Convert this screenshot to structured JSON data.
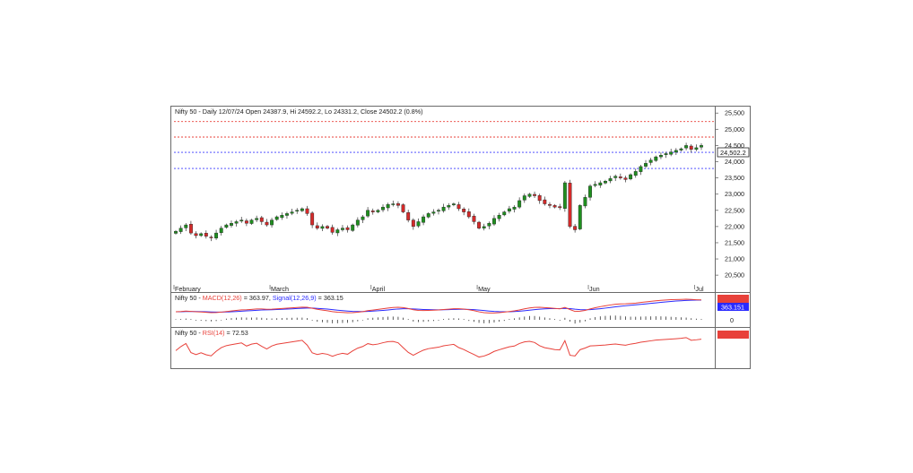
{
  "chart_data": [
    {
      "type": "candlestick",
      "header": "Nifty 50 - Daily 12/07/24 Open 24387.9, Hi 24592.2, Lo 24331.2, Close 24502.2 (0.8%)",
      "y_ticks": [
        "25,500",
        "25,000",
        "24,500",
        "24,000",
        "23,500",
        "23,000",
        "22,500",
        "22,000",
        "21,500",
        "21,000",
        "20,500"
      ],
      "ylim": [
        20200,
        25700
      ],
      "price_label": "24,502.2",
      "last_close": 24502.2,
      "month_labels": [
        {
          "label": "February",
          "index": 0
        },
        {
          "label": "March",
          "index": 19
        },
        {
          "label": "April",
          "index": 39
        },
        {
          "label": "May",
          "index": 60
        },
        {
          "label": "Jun",
          "index": 82
        },
        {
          "label": "Jul",
          "index": 103
        }
      ],
      "horizontal_levels": [
        {
          "value": 25240,
          "color": "#e8413a"
        },
        {
          "value": 24760,
          "color": "#e8413a"
        },
        {
          "value": 24290,
          "color": "#3a3aff"
        },
        {
          "value": 23790,
          "color": "#3a3aff"
        }
      ],
      "closes": [
        21850,
        21950,
        22050,
        21800,
        21720,
        21780,
        21700,
        21650,
        21800,
        21950,
        22050,
        22100,
        22150,
        22200,
        22100,
        22200,
        22250,
        22150,
        22050,
        22200,
        22300,
        22350,
        22400,
        22450,
        22500,
        22550,
        22400,
        22050,
        21950,
        22000,
        21950,
        21820,
        21900,
        21950,
        21900,
        22050,
        22200,
        22300,
        22500,
        22450,
        22500,
        22600,
        22680,
        22700,
        22650,
        22450,
        22200,
        22000,
        22150,
        22300,
        22400,
        22450,
        22500,
        22600,
        22650,
        22700,
        22550,
        22450,
        22300,
        22150,
        21950,
        22000,
        22100,
        22250,
        22350,
        22450,
        22550,
        22600,
        22800,
        22950,
        23000,
        22950,
        22800,
        22700,
        22650,
        22600,
        22580,
        23350,
        22000,
        21900,
        22650,
        22900,
        23250,
        23300,
        23350,
        23400,
        23480,
        23550,
        23500,
        23450,
        23600,
        23700,
        23850,
        23950,
        24050,
        24150,
        24200,
        24250,
        24300,
        24350,
        24400,
        24500,
        24380,
        24432,
        24502
      ],
      "macd_panel": {
        "label_name": "Nifty 50 - ",
        "label_macd": "MACD(12,26)",
        "label_macd_value": " = 363.97, ",
        "label_signal": "Signal(12,26,9)",
        "label_signal_value": " = 363.15",
        "signal_badge": "363.151",
        "zero_tick": "0",
        "macd_color": "#e8413a",
        "signal_color": "#2a2aff"
      },
      "rsi_panel": {
        "label_name": "Nifty 50 - ",
        "label_rsi": "RSI(14)",
        "label_rsi_value": " = 72.53",
        "rsi_color": "#e8413a"
      }
    }
  ]
}
